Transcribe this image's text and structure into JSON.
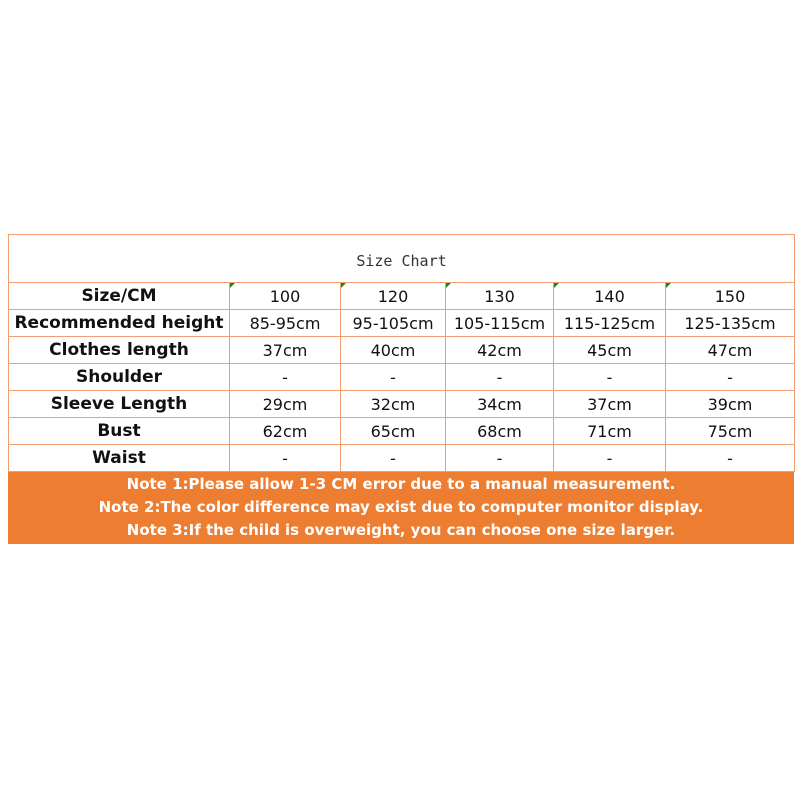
{
  "title": "Size Chart",
  "header": {
    "label": "Size/CM",
    "sizes": [
      "100",
      "120",
      "130",
      "140",
      "150"
    ]
  },
  "rows": [
    {
      "label": "Recommended height",
      "values": [
        "85-95cm",
        "95-105cm",
        "105-115cm",
        "115-125cm",
        "125-135cm"
      ]
    },
    {
      "label": "Clothes length",
      "values": [
        "37cm",
        "40cm",
        "42cm",
        "45cm",
        "47cm"
      ]
    },
    {
      "label": "Shoulder",
      "values": [
        "-",
        "-",
        "-",
        "-",
        "-"
      ]
    },
    {
      "label": "Sleeve Length",
      "values": [
        "29cm",
        "32cm",
        "34cm",
        "37cm",
        "39cm"
      ]
    },
    {
      "label": "Bust",
      "values": [
        "62cm",
        "65cm",
        "68cm",
        "71cm",
        "75cm"
      ]
    },
    {
      "label": "Waist",
      "values": [
        "-",
        "-",
        "-",
        "-",
        "-"
      ]
    }
  ],
  "notes": [
    "Note 1:Please allow 1-3 CM error due to a manual measurement.",
    "Note 2:The color difference may exist due to computer monitor display.",
    "Note 3:If the child is overweight, you can choose one size larger."
  ],
  "colors": {
    "border": "#f0a070",
    "notes_bg": "#ed7d31"
  }
}
